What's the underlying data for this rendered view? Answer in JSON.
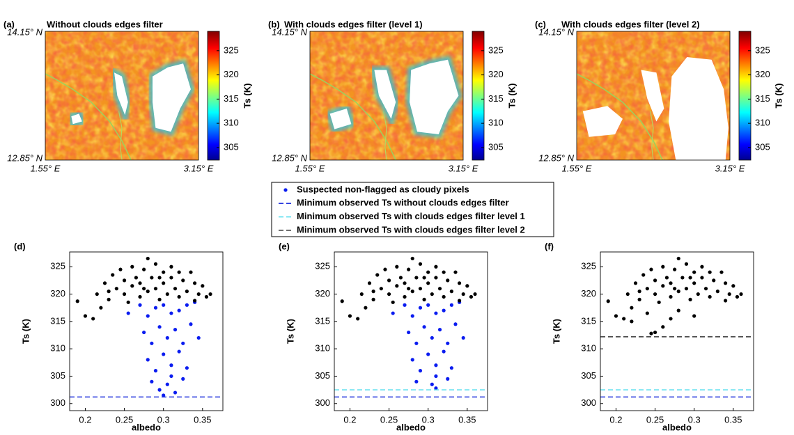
{
  "chart_data": [
    {
      "type": "heatmap",
      "panel": "(a)",
      "title": "Without clouds edges filter",
      "lat_labels": [
        "14.15° N",
        "12.85° N"
      ],
      "lon_labels": [
        "1.55° E",
        "3.15° E"
      ],
      "colorbar_label": "Ts (K)",
      "clim": [
        302.4,
        329
      ],
      "cticks": [
        305,
        310,
        315,
        320,
        325
      ],
      "colormap": "jet"
    },
    {
      "type": "heatmap",
      "panel": "(b)",
      "title": "With clouds edges filter (level 1)",
      "lat_labels": [
        "14.15° N",
        "12.85° N"
      ],
      "lon_labels": [
        "1.55° E",
        "3.15° E"
      ],
      "colorbar_label": "Ts (K)",
      "clim": [
        302.4,
        329
      ],
      "cticks": [
        305,
        310,
        315,
        320,
        325
      ],
      "colormap": "jet"
    },
    {
      "type": "heatmap",
      "panel": "(c)",
      "title": "With clouds edges filter (level 2)",
      "lat_labels": [
        "14.15° N",
        "12.85° N"
      ],
      "lon_labels": [
        "1.55° E",
        "3.15° E"
      ],
      "colorbar_label": "Ts (K)",
      "clim": [
        302.4,
        329
      ],
      "cticks": [
        305,
        310,
        315,
        320,
        325
      ],
      "colormap": "jet"
    },
    {
      "type": "scatter",
      "panel": "(d)",
      "xlabel": "albedo",
      "ylabel": "Ts (K)",
      "xlim": [
        0.18,
        0.376
      ],
      "ylim": [
        298.7,
        327.7
      ],
      "xticks": [
        0.2,
        0.25,
        0.3,
        0.35
      ],
      "yticks": [
        300,
        305,
        310,
        315,
        320,
        325
      ],
      "series": [
        {
          "name": "Suspected non-flagged as cloudy pixels",
          "color": "#0a1cf0",
          "x": [
            0.27,
            0.28,
            0.29,
            0.3,
            0.31,
            0.32,
            0.33,
            0.34,
            0.275,
            0.285,
            0.295,
            0.305,
            0.315,
            0.325,
            0.335,
            0.28,
            0.29,
            0.3,
            0.31,
            0.32,
            0.33,
            0.285,
            0.295,
            0.305,
            0.315,
            0.325,
            0.3,
            0.31,
            0.255,
            0.345
          ],
          "values": [
            318,
            316,
            317.5,
            318,
            316.5,
            317,
            318,
            318.5,
            313,
            311,
            314,
            312,
            313.5,
            311,
            314.5,
            308,
            306,
            309,
            307,
            309.5,
            306.5,
            304,
            302.5,
            303.5,
            302,
            304.5,
            301.5,
            305,
            316.5,
            312
          ]
        },
        {
          "color": "#000000",
          "x": [
            0.19,
            0.2,
            0.21,
            0.22,
            0.215,
            0.225,
            0.23,
            0.235,
            0.24,
            0.245,
            0.25,
            0.25,
            0.255,
            0.26,
            0.26,
            0.265,
            0.27,
            0.27,
            0.275,
            0.28,
            0.28,
            0.285,
            0.29,
            0.29,
            0.295,
            0.3,
            0.3,
            0.305,
            0.31,
            0.31,
            0.315,
            0.32,
            0.32,
            0.325,
            0.33,
            0.335,
            0.34,
            0.345,
            0.35,
            0.355,
            0.36,
            0.23,
            0.275,
            0.295,
            0.34
          ],
          "values": [
            318.7,
            316,
            315.5,
            317.5,
            320,
            322,
            319,
            323.5,
            321,
            324.5,
            320,
            322.5,
            318.5,
            325,
            321.5,
            323,
            319.5,
            322,
            324.5,
            326.5,
            320.5,
            323,
            325.5,
            321,
            319,
            324,
            322,
            320,
            325,
            323,
            321,
            324,
            319.5,
            322.5,
            320.5,
            324,
            322,
            320,
            321.5,
            319.5,
            320,
            320.5,
            321,
            323,
            318.8
          ]
        }
      ],
      "hlines": [
        {
          "name": "Minimum observed Ts without clouds edges filter",
          "color": "#2233dd",
          "value": 301.2
        }
      ]
    },
    {
      "type": "scatter",
      "panel": "(e)",
      "xlabel": "albedo",
      "ylabel": "Ts (K)",
      "xlim": [
        0.18,
        0.376
      ],
      "ylim": [
        298.7,
        327.7
      ],
      "xticks": [
        0.2,
        0.25,
        0.3,
        0.35
      ],
      "yticks": [
        300,
        305,
        310,
        315,
        320,
        325
      ],
      "series": [
        {
          "color": "#0a1cf0",
          "x": [
            0.27,
            0.28,
            0.29,
            0.3,
            0.31,
            0.32,
            0.33,
            0.34,
            0.275,
            0.285,
            0.295,
            0.305,
            0.315,
            0.325,
            0.335,
            0.28,
            0.29,
            0.3,
            0.31,
            0.32,
            0.33,
            0.285,
            0.305,
            0.325,
            0.31,
            0.255,
            0.345,
            0.31
          ],
          "values": [
            318,
            316,
            317.5,
            318,
            316.5,
            317,
            318,
            318.5,
            313,
            311,
            314,
            312,
            313.5,
            311,
            314.5,
            308,
            306,
            309,
            307,
            309.5,
            306.5,
            304,
            303.5,
            304.5,
            305,
            316.5,
            312,
            302.8
          ]
        },
        {
          "color": "#000000",
          "x": [
            0.19,
            0.2,
            0.21,
            0.22,
            0.215,
            0.225,
            0.23,
            0.235,
            0.24,
            0.245,
            0.25,
            0.25,
            0.255,
            0.26,
            0.26,
            0.265,
            0.27,
            0.27,
            0.275,
            0.28,
            0.28,
            0.285,
            0.29,
            0.29,
            0.295,
            0.3,
            0.3,
            0.305,
            0.31,
            0.31,
            0.315,
            0.32,
            0.32,
            0.325,
            0.33,
            0.335,
            0.34,
            0.345,
            0.35,
            0.355,
            0.36,
            0.23,
            0.275,
            0.295,
            0.34
          ],
          "values": [
            318.7,
            316,
            315.5,
            317.5,
            320,
            322,
            319,
            323.5,
            321,
            324.5,
            320,
            322.5,
            318.5,
            325,
            321.5,
            323,
            319.5,
            322,
            324.5,
            326.5,
            320.5,
            323,
            325.5,
            321,
            319,
            324,
            322,
            320,
            325,
            323,
            321,
            324,
            319.5,
            322.5,
            320.5,
            324,
            322,
            320,
            321.5,
            319.5,
            320,
            320.5,
            321,
            323,
            318.8
          ]
        }
      ],
      "hlines": [
        {
          "color": "#2233dd",
          "value": 301.2
        },
        {
          "name": "Minimum observed Ts with clouds edges filter level 1",
          "color": "#55ddee",
          "value": 302.5
        }
      ]
    },
    {
      "type": "scatter",
      "panel": "(f)",
      "xlabel": "albedo",
      "ylabel": "Ts (K)",
      "xlim": [
        0.18,
        0.376
      ],
      "ylim": [
        298.7,
        327.7
      ],
      "xticks": [
        0.2,
        0.25,
        0.3,
        0.35
      ],
      "yticks": [
        300,
        305,
        310,
        315,
        320,
        325
      ],
      "series": [
        {
          "color": "#000000",
          "x": [
            0.19,
            0.2,
            0.21,
            0.22,
            0.215,
            0.225,
            0.23,
            0.235,
            0.24,
            0.245,
            0.25,
            0.25,
            0.255,
            0.26,
            0.26,
            0.265,
            0.27,
            0.27,
            0.275,
            0.28,
            0.28,
            0.285,
            0.29,
            0.29,
            0.295,
            0.3,
            0.3,
            0.305,
            0.31,
            0.31,
            0.315,
            0.32,
            0.32,
            0.325,
            0.33,
            0.335,
            0.34,
            0.345,
            0.35,
            0.355,
            0.36,
            0.23,
            0.275,
            0.295,
            0.34,
            0.22,
            0.24,
            0.25,
            0.26,
            0.27,
            0.28,
            0.3,
            0.245
          ],
          "values": [
            318.7,
            316,
            315.5,
            317.5,
            320,
            322,
            319,
            323.5,
            321,
            324.5,
            320,
            322.5,
            318.5,
            325,
            321.5,
            323,
            319.5,
            322,
            324.5,
            326.5,
            320.5,
            323,
            325.5,
            321,
            319,
            324,
            322,
            320,
            325,
            323,
            321,
            324,
            319.5,
            322.5,
            320.5,
            324,
            322,
            320,
            321.5,
            319.5,
            320,
            320.5,
            321,
            323,
            318.8,
            315,
            316.5,
            313,
            314,
            315.5,
            317,
            316,
            312.8
          ]
        }
      ],
      "hlines": [
        {
          "color": "#2233dd",
          "value": 301.2
        },
        {
          "color": "#55ddee",
          "value": 302.5
        },
        {
          "name": "Minimum observed Ts with clouds edges filter level 2",
          "color": "#333333",
          "value": 312.2
        }
      ]
    }
  ]
}
